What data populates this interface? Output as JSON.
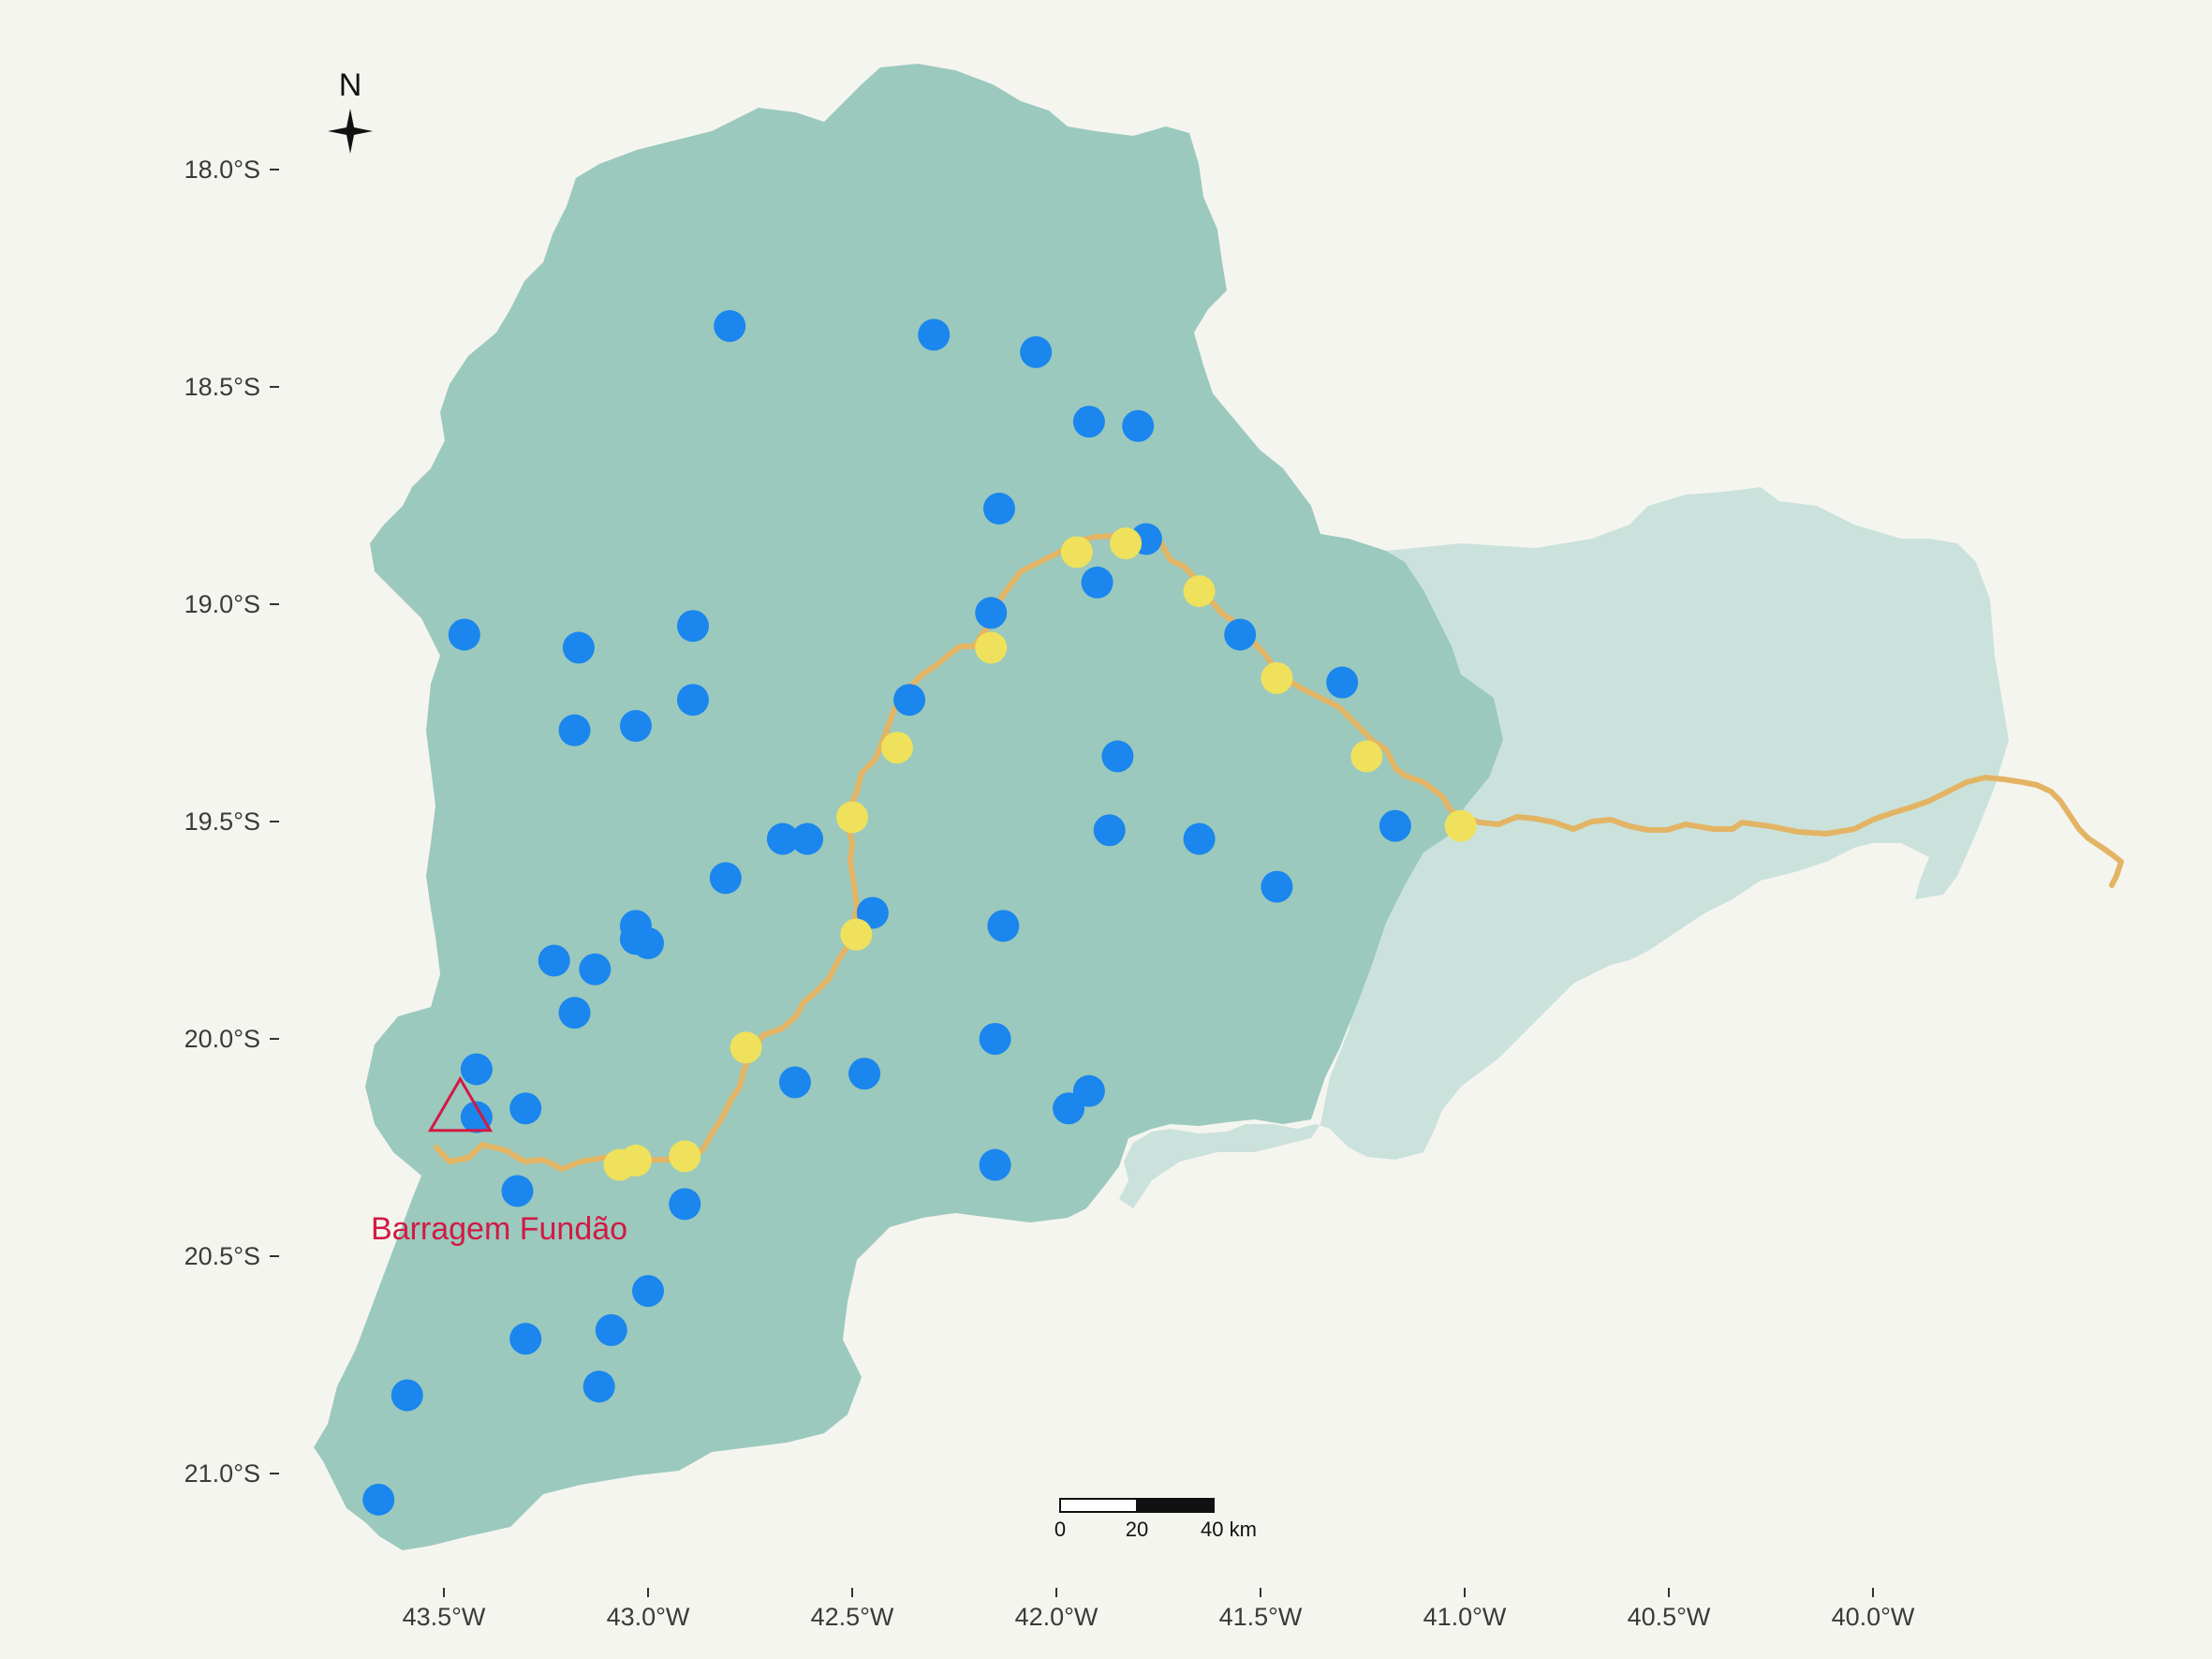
{
  "map": {
    "title": "",
    "colors": {
      "background": "#f5f5f0",
      "basin_upper": "#9bc9bd",
      "basin_lower": "#cbe2dc",
      "river": "#e3b464",
      "dam": "#d11a45",
      "blue_points": "#1a86ee",
      "yellow_points": "#efe15b"
    },
    "north_arrow_label": "N",
    "dam": {
      "label": "Barragem Fundão",
      "lon": -43.46,
      "lat": -20.2
    },
    "scale_bar": {
      "labels": [
        "0",
        "20",
        "40 km"
      ]
    },
    "x_ticks": [
      {
        "lon": -43.5,
        "label": "43.5°W"
      },
      {
        "lon": -43.0,
        "label": "43.0°W"
      },
      {
        "lon": -42.5,
        "label": "42.5°W"
      },
      {
        "lon": -42.0,
        "label": "42.0°W"
      },
      {
        "lon": -41.5,
        "label": "41.5°W"
      },
      {
        "lon": -41.0,
        "label": "41.0°W"
      },
      {
        "lon": -40.5,
        "label": "40.5°W"
      },
      {
        "lon": -40.0,
        "label": "40.0°W"
      }
    ],
    "y_ticks": [
      {
        "lat": -18.0,
        "label": "18.0°S"
      },
      {
        "lat": -18.5,
        "label": "18.5°S"
      },
      {
        "lat": -19.0,
        "label": "19.0°S"
      },
      {
        "lat": -19.5,
        "label": "19.5°S"
      },
      {
        "lat": -20.0,
        "label": "20.0°S"
      },
      {
        "lat": -20.5,
        "label": "20.5°S"
      },
      {
        "lat": -21.0,
        "label": "21.0°S"
      }
    ],
    "blue_points": [
      [
        -42.8,
        -18.36
      ],
      [
        -42.3,
        -18.38
      ],
      [
        -42.05,
        -18.42
      ],
      [
        -41.92,
        -18.58
      ],
      [
        -41.8,
        -18.59
      ],
      [
        -42.14,
        -18.78
      ],
      [
        -41.78,
        -18.85
      ],
      [
        -41.9,
        -18.95
      ],
      [
        -42.16,
        -19.02
      ],
      [
        -41.55,
        -19.07
      ],
      [
        -41.3,
        -19.18
      ],
      [
        -43.45,
        -19.07
      ],
      [
        -43.17,
        -19.1
      ],
      [
        -42.89,
        -19.05
      ],
      [
        -42.89,
        -19.22
      ],
      [
        -43.03,
        -19.28
      ],
      [
        -43.18,
        -19.29
      ],
      [
        -42.36,
        -19.22
      ],
      [
        -41.85,
        -19.35
      ],
      [
        -41.87,
        -19.52
      ],
      [
        -41.65,
        -19.54
      ],
      [
        -41.17,
        -19.51
      ],
      [
        -42.67,
        -19.54
      ],
      [
        -42.61,
        -19.54
      ],
      [
        -42.81,
        -19.63
      ],
      [
        -41.46,
        -19.65
      ],
      [
        -42.45,
        -19.71
      ],
      [
        -42.13,
        -19.74
      ],
      [
        -43.03,
        -19.74
      ],
      [
        -43.03,
        -19.77
      ],
      [
        -43.0,
        -19.78
      ],
      [
        -43.23,
        -19.82
      ],
      [
        -43.13,
        -19.84
      ],
      [
        -43.18,
        -19.94
      ],
      [
        -42.15,
        -20.0
      ],
      [
        -43.42,
        -20.07
      ],
      [
        -42.47,
        -20.08
      ],
      [
        -42.64,
        -20.1
      ],
      [
        -41.92,
        -20.12
      ],
      [
        -41.97,
        -20.16
      ],
      [
        -43.3,
        -20.16
      ],
      [
        -43.42,
        -20.18
      ],
      [
        -42.15,
        -20.29
      ],
      [
        -43.32,
        -20.35
      ],
      [
        -42.91,
        -20.38
      ],
      [
        -43.0,
        -20.58
      ],
      [
        -43.09,
        -20.67
      ],
      [
        -43.3,
        -20.69
      ],
      [
        -43.12,
        -20.8
      ],
      [
        -43.59,
        -20.82
      ],
      [
        -43.66,
        -21.06
      ]
    ],
    "yellow_points": [
      [
        -41.95,
        -18.88
      ],
      [
        -41.83,
        -18.86
      ],
      [
        -41.65,
        -18.97
      ],
      [
        -42.16,
        -19.1
      ],
      [
        -41.46,
        -19.17
      ],
      [
        -42.39,
        -19.33
      ],
      [
        -41.24,
        -19.35
      ],
      [
        -41.01,
        -19.51
      ],
      [
        -42.5,
        -19.49
      ],
      [
        -42.49,
        -19.76
      ],
      [
        -42.76,
        -20.02
      ],
      [
        -42.91,
        -20.27
      ],
      [
        -43.03,
        -20.28
      ],
      [
        -43.07,
        -20.29
      ]
    ]
  }
}
